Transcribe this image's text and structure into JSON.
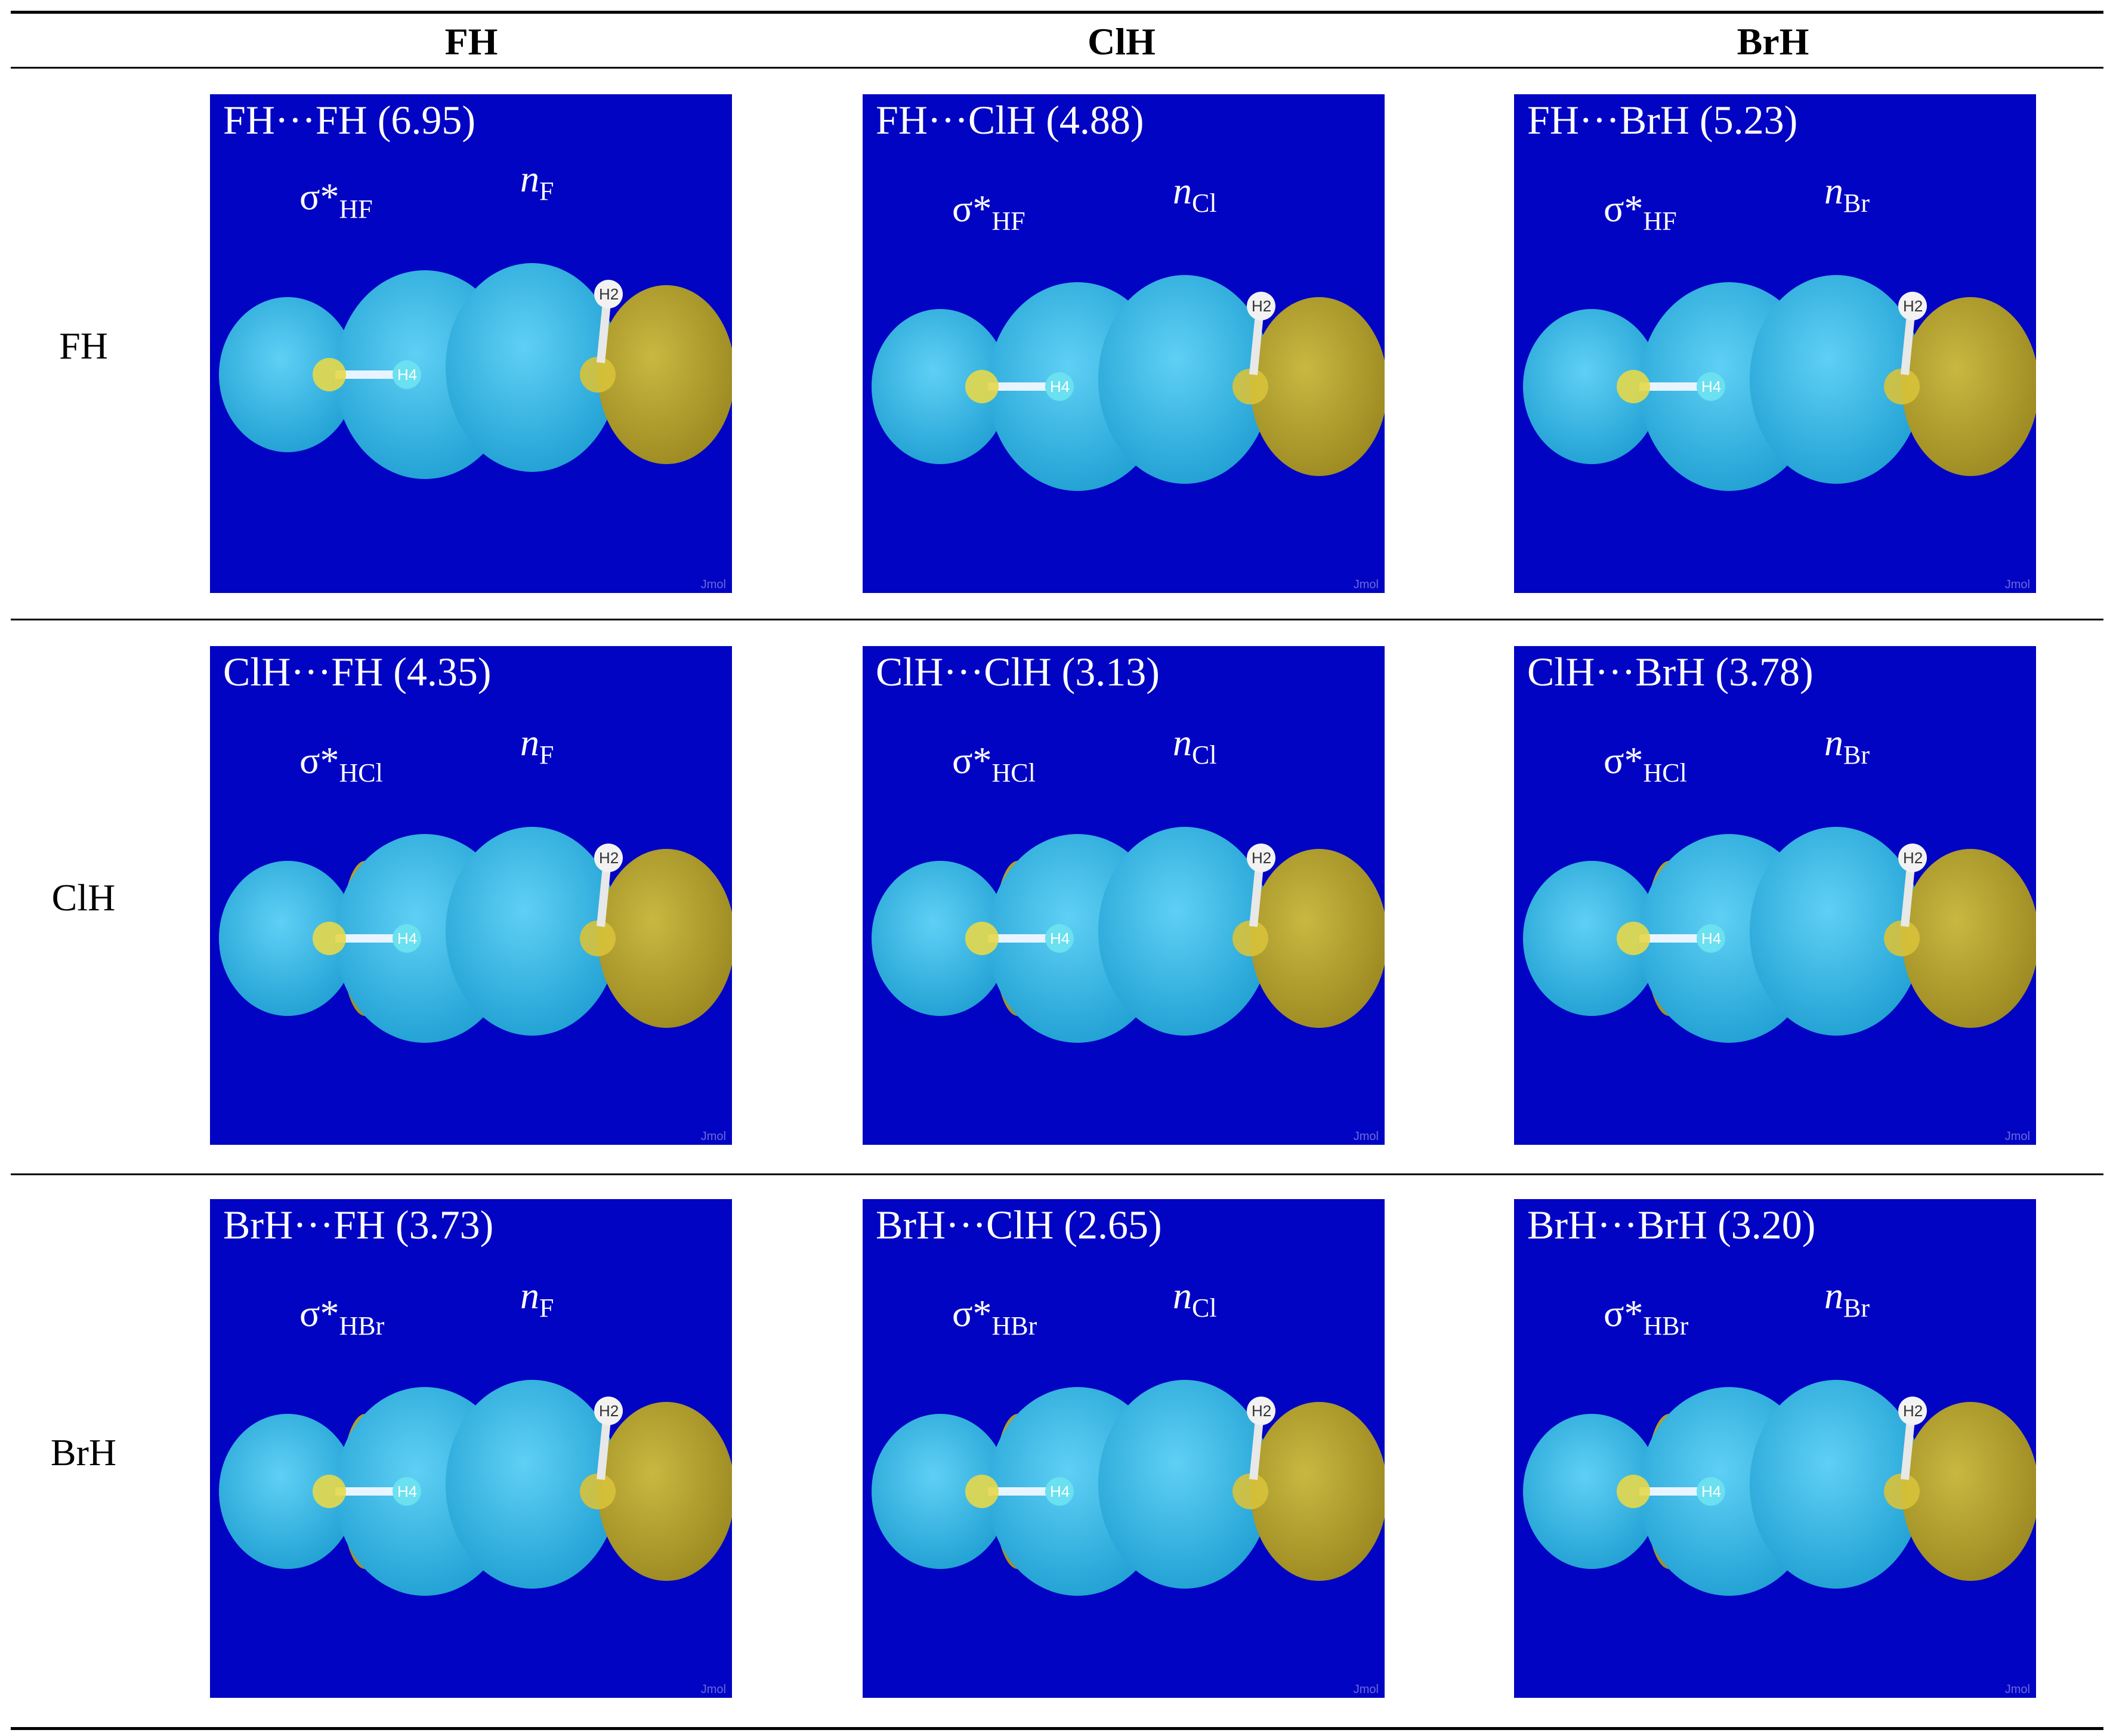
{
  "table": {
    "column_headers": [
      "FH",
      "ClH",
      "BrH"
    ],
    "row_headers": [
      "FH",
      "ClH",
      "BrH"
    ],
    "panels": [
      [
        {
          "title": "FH···FH (6.95)",
          "sigma": "σ*",
          "sigma_sub": "HF",
          "n": "n",
          "n_sub": "F",
          "atom_left": "H4",
          "atom_right": "H2",
          "watermark": "Jmol"
        },
        {
          "title": "FH···ClH (4.88)",
          "sigma": "σ*",
          "sigma_sub": "HF",
          "n": "n",
          "n_sub": "Cl",
          "atom_left": "H4",
          "atom_right": "H2",
          "watermark": "Jmol"
        },
        {
          "title": "FH···BrH (5.23)",
          "sigma": "σ*",
          "sigma_sub": "HF",
          "n": "n",
          "n_sub": "Br",
          "atom_left": "H4",
          "atom_right": "H2",
          "watermark": "Jmol"
        }
      ],
      [
        {
          "title": "ClH···FH (4.35)",
          "sigma": "σ*",
          "sigma_sub": "HCl",
          "n": "n",
          "n_sub": "F",
          "atom_left": "H4",
          "atom_right": "H2",
          "watermark": "Jmol"
        },
        {
          "title": "ClH···ClH (3.13)",
          "sigma": "σ*",
          "sigma_sub": "HCl",
          "n": "n",
          "n_sub": "Cl",
          "atom_left": "H4",
          "atom_right": "H2",
          "watermark": "Jmol"
        },
        {
          "title": "ClH···BrH (3.78)",
          "sigma": "σ*",
          "sigma_sub": "HCl",
          "n": "n",
          "n_sub": "Br",
          "atom_left": "H4",
          "atom_right": "H2",
          "watermark": "Jmol"
        }
      ],
      [
        {
          "title": "BrH···FH (3.73)",
          "sigma": "σ*",
          "sigma_sub": "HBr",
          "n": "n",
          "n_sub": "F",
          "atom_left": "H4",
          "atom_right": "H2",
          "watermark": "Jmol"
        },
        {
          "title": "BrH···ClH (2.65)",
          "sigma": "σ*",
          "sigma_sub": "HBr",
          "n": "n",
          "n_sub": "Cl",
          "atom_left": "H4",
          "atom_right": "H2",
          "watermark": "Jmol"
        },
        {
          "title": "BrH···BrH (3.20)",
          "sigma": "σ*",
          "sigma_sub": "HBr",
          "n": "n",
          "n_sub": "Br",
          "atom_left": "H4",
          "atom_right": "H2",
          "watermark": "Jmol"
        }
      ]
    ]
  },
  "colors": {
    "panel_background": "#0204c4",
    "lobe_cyan": "#2bb6e6",
    "lobe_yellow": "#b7a530"
  }
}
